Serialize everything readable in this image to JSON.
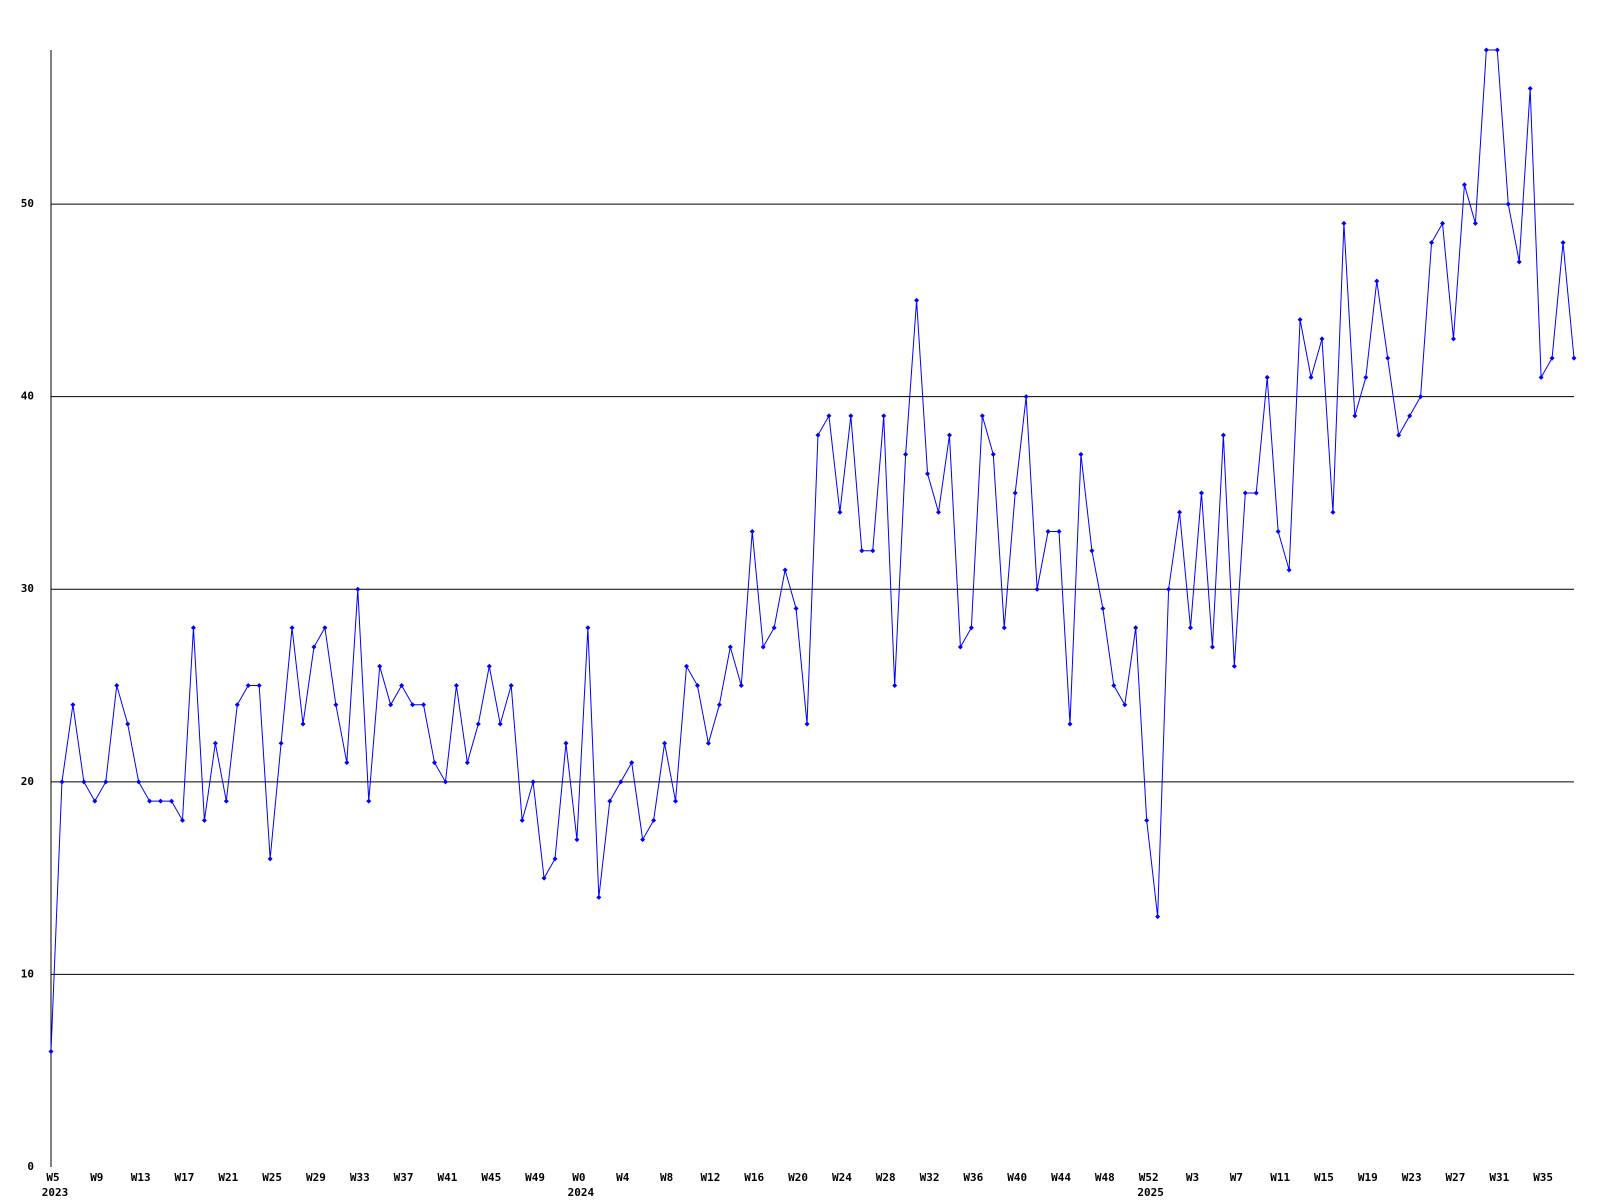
{
  "chart_data": {
    "type": "line",
    "categories": [
      "W5",
      null,
      null,
      null,
      "W9",
      null,
      null,
      null,
      "W13",
      null,
      null,
      null,
      "W17",
      null,
      null,
      null,
      "W21",
      null,
      null,
      null,
      "W25",
      null,
      null,
      null,
      "W29",
      null,
      null,
      null,
      "W33",
      null,
      null,
      null,
      "W37",
      null,
      null,
      null,
      "W41",
      null,
      null,
      null,
      "W45",
      null,
      null,
      null,
      "W49",
      null,
      null,
      null,
      "W0",
      null,
      null,
      null,
      "W4",
      null,
      null,
      null,
      "W8",
      null,
      null,
      null,
      "W12",
      null,
      null,
      null,
      "W16",
      null,
      null,
      null,
      "W20",
      null,
      null,
      null,
      "W24",
      null,
      null,
      null,
      "W28",
      null,
      null,
      null,
      "W32",
      null,
      null,
      null,
      "W36",
      null,
      null,
      null,
      "W40",
      null,
      null,
      null,
      "W44",
      null,
      null,
      null,
      "W48",
      null,
      null,
      null,
      "W52",
      null,
      null,
      null,
      "W3",
      null,
      null,
      null,
      "W7",
      null,
      null,
      null,
      "W11",
      null,
      null,
      null,
      "W15",
      null,
      null,
      null,
      "W19",
      null,
      null,
      null,
      "W23",
      null,
      null,
      null,
      "W27",
      null,
      null,
      null,
      "W31",
      null,
      null,
      null,
      "W35",
      null,
      null,
      null
    ],
    "category_years": [
      "2023",
      null,
      null,
      null,
      null,
      null,
      null,
      null,
      null,
      null,
      null,
      null,
      null,
      null,
      null,
      null,
      null,
      null,
      null,
      null,
      null,
      null,
      null,
      null,
      null,
      null,
      null,
      null,
      null,
      null,
      null,
      null,
      null,
      null,
      null,
      null,
      null,
      null,
      null,
      null,
      null,
      null,
      null,
      null,
      null,
      null,
      null,
      null,
      "2024",
      null,
      null,
      null,
      null,
      null,
      null,
      null,
      null,
      null,
      null,
      null,
      null,
      null,
      null,
      null,
      null,
      null,
      null,
      null,
      null,
      null,
      null,
      null,
      null,
      null,
      null,
      null,
      null,
      null,
      null,
      null,
      null,
      null,
      null,
      null,
      null,
      null,
      null,
      null,
      null,
      null,
      null,
      null,
      null,
      null,
      null,
      null,
      null,
      null,
      null,
      null,
      "2025",
      null,
      null,
      null,
      null,
      null,
      null,
      null,
      null,
      null,
      null,
      null,
      null,
      null,
      null,
      null,
      null,
      null,
      null,
      null,
      null,
      null,
      null,
      null,
      null,
      null,
      null,
      null,
      null,
      null,
      null,
      null,
      null,
      null,
      null,
      null,
      null,
      null,
      null,
      null
    ],
    "values": [
      6,
      20,
      24,
      20,
      19,
      20,
      25,
      23,
      20,
      19,
      19,
      19,
      18,
      28,
      18,
      22,
      19,
      24,
      25,
      25,
      16,
      22,
      28,
      23,
      27,
      28,
      24,
      21,
      30,
      19,
      26,
      24,
      25,
      24,
      24,
      21,
      20,
      25,
      21,
      23,
      26,
      23,
      25,
      18,
      20,
      15,
      16,
      22,
      17,
      28,
      14,
      19,
      20,
      21,
      17,
      18,
      22,
      19,
      26,
      25,
      22,
      24,
      27,
      25,
      33,
      27,
      28,
      31,
      29,
      23,
      38,
      39,
      34,
      39,
      32,
      32,
      39,
      25,
      37,
      45,
      36,
      34,
      38,
      27,
      28,
      39,
      37,
      28,
      35,
      40,
      30,
      33,
      33,
      23,
      37,
      32,
      29,
      25,
      24,
      28,
      18,
      13,
      30,
      34,
      28,
      35,
      27,
      38,
      26,
      35,
      35,
      41,
      33,
      31,
      44,
      41,
      43,
      34,
      49,
      39,
      41,
      46,
      42,
      38,
      39,
      40,
      48,
      49,
      43,
      51,
      49,
      58,
      58,
      50,
      47,
      56,
      41,
      42,
      48,
      42
    ],
    "color": "#0000ff",
    "ylim": [
      0,
      58
    ],
    "yticks": [
      0,
      10,
      20,
      30,
      40,
      50
    ],
    "grid": true
  }
}
